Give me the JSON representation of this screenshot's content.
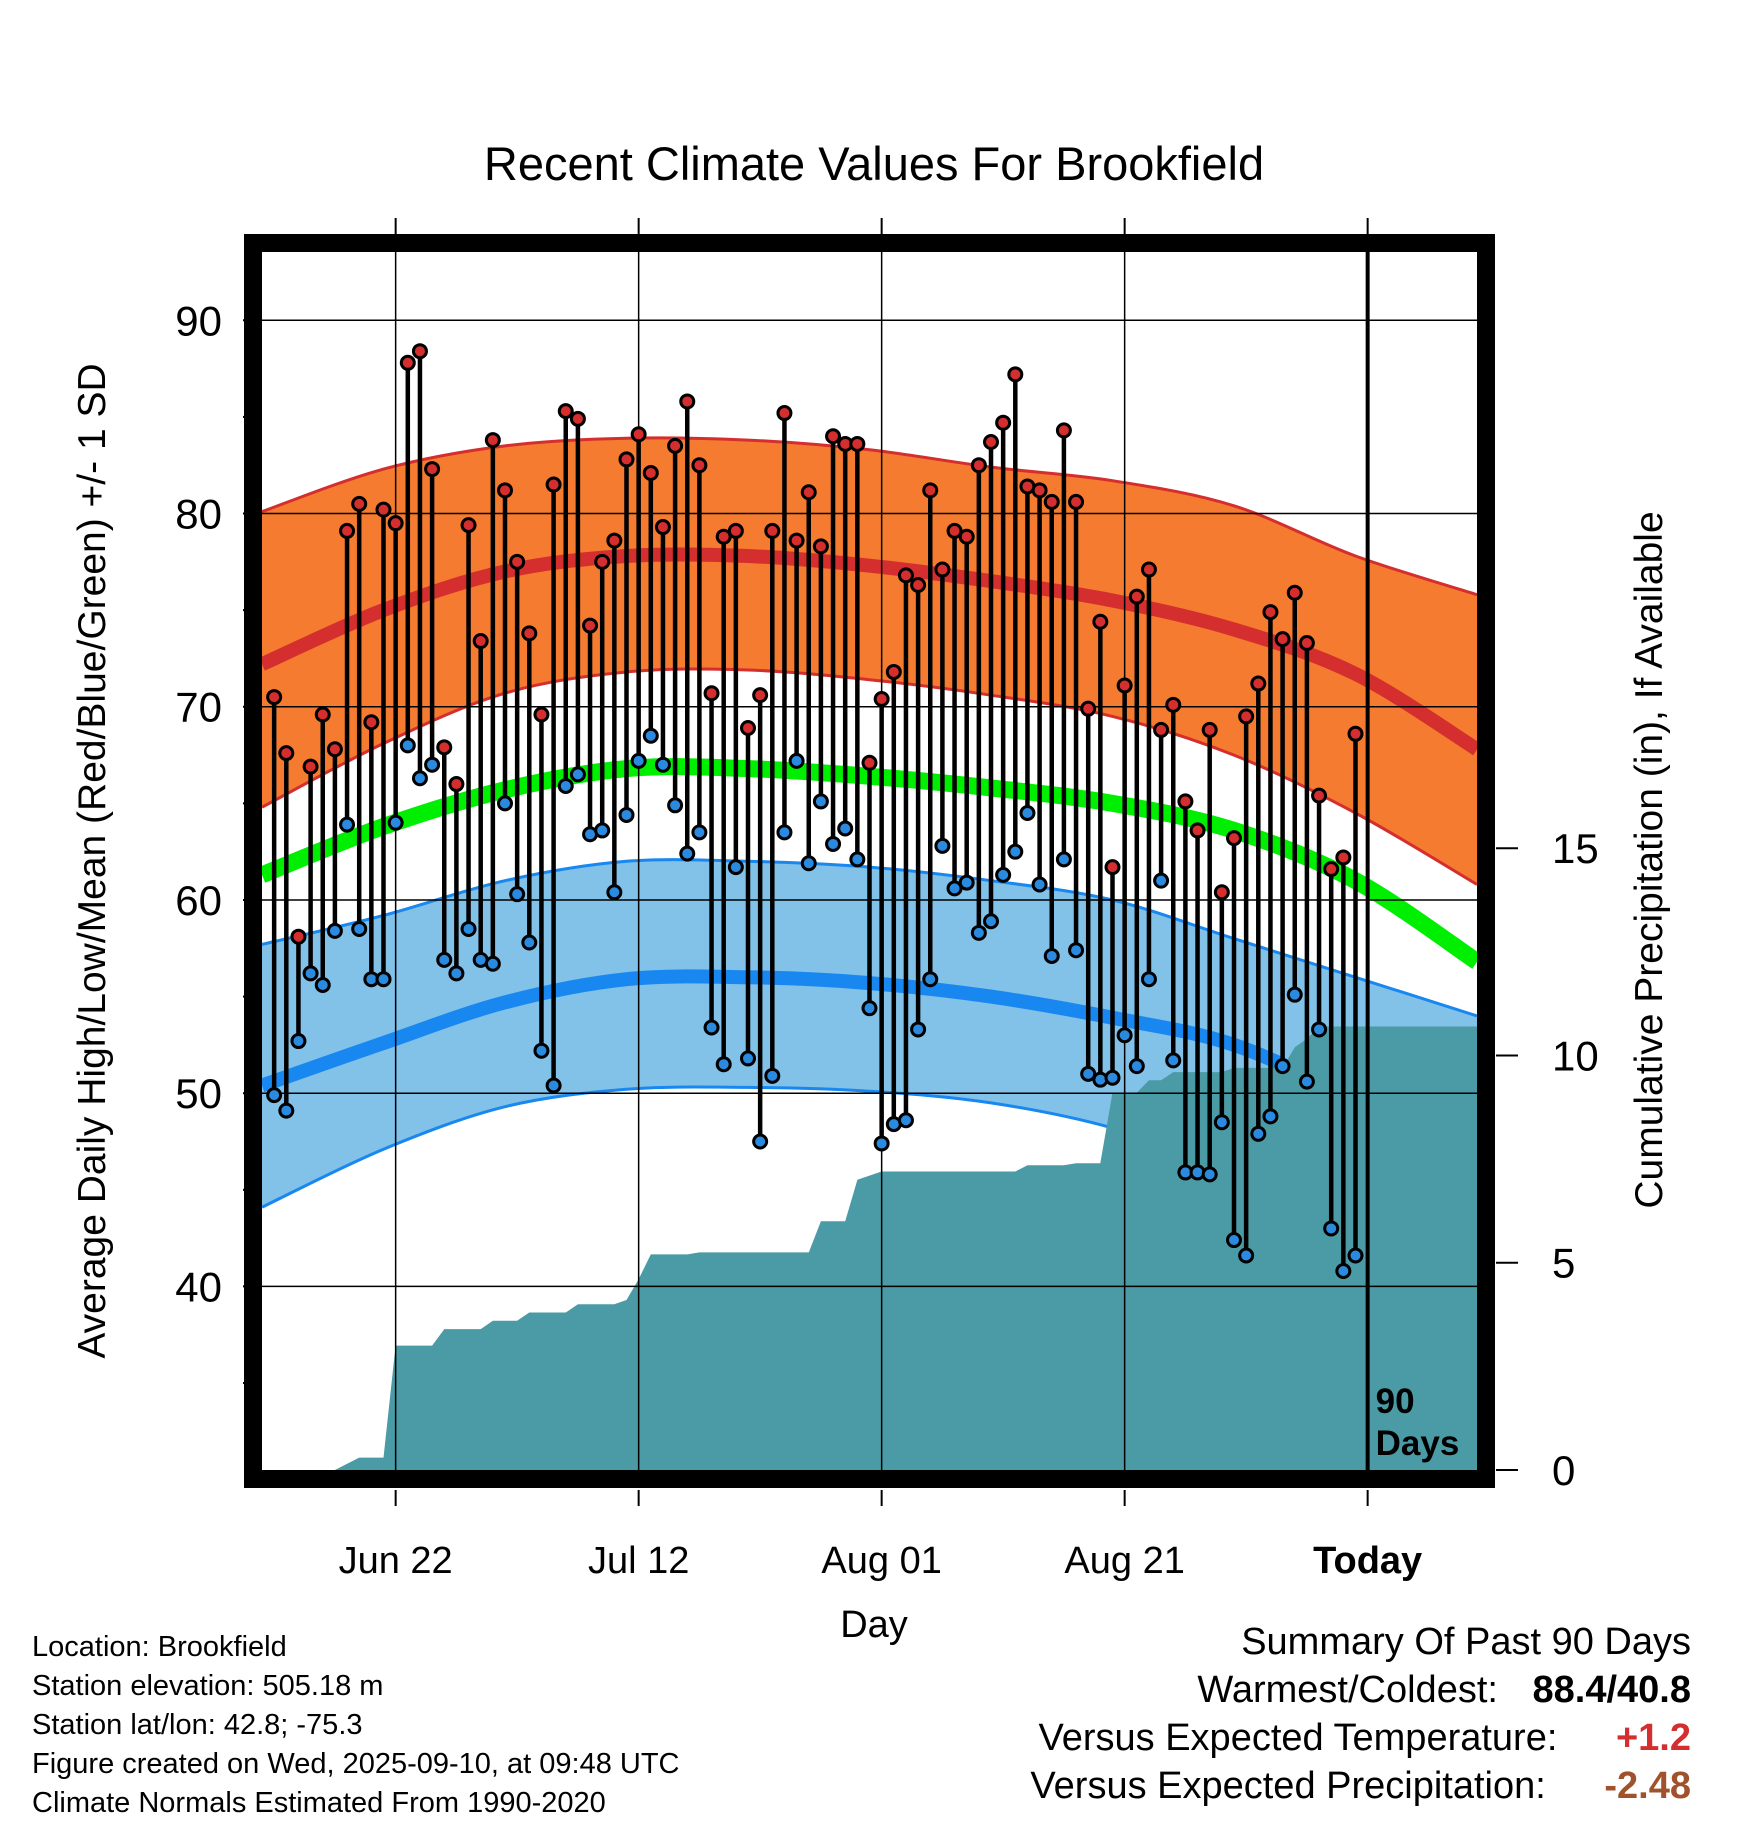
{
  "chart_data": {
    "type": "line",
    "title": "Recent Climate Values For Brookfield",
    "xlabel": "Day",
    "ylabel": "Average Daily High/Low/Mean (Red/Blue/Green) +/- 1 SD",
    "y2label": "Cumulative Precipitation (in), If Available",
    "ylim": [
      30.5,
      94
    ],
    "y2lim": [
      0,
      29.6
    ],
    "xlim": [
      0,
      100
    ],
    "y_ticks": [
      40,
      50,
      60,
      70,
      80,
      90
    ],
    "y2_ticks": [
      0,
      5,
      10,
      15
    ],
    "x_ticks": [
      {
        "day": 11,
        "label": "Jun 22"
      },
      {
        "day": 31,
        "label": "Jul 12"
      },
      {
        "day": 51,
        "label": "Aug 01"
      },
      {
        "day": 71,
        "label": "Aug 21"
      },
      {
        "day": 91,
        "label": "Today"
      }
    ],
    "today_day": 91,
    "today_label_1": "90",
    "today_label_2": "Days",
    "grid": true,
    "colors": {
      "high_band": "#f47b2f",
      "high_mean": "#d42e2e",
      "low_band": "#82c1e8",
      "low_mean": "#1888f0",
      "mean": "#00ee00",
      "precip": "#4a9ba5",
      "high_dot": "#d42e2e",
      "low_dot": "#2a8ae0"
    },
    "normals": {
      "days": [
        0,
        10,
        20,
        30,
        40,
        50,
        60,
        70,
        80,
        90,
        100
      ],
      "high_mean": [
        72.2,
        75.0,
        77.0,
        77.8,
        77.8,
        77.3,
        76.5,
        75.5,
        74.0,
        71.7,
        67.8
      ],
      "high_upper": [
        80.1,
        82.3,
        83.5,
        83.9,
        83.8,
        83.3,
        82.4,
        81.7,
        80.4,
        77.8,
        75.8
      ],
      "high_lower": [
        64.8,
        68.1,
        70.7,
        71.8,
        71.9,
        71.4,
        70.6,
        69.5,
        67.5,
        64.5,
        60.8
      ],
      "mean": [
        61.3,
        63.8,
        65.7,
        66.8,
        66.8,
        66.4,
        65.8,
        65.0,
        63.6,
        61.0,
        56.8
      ],
      "low_mean": [
        50.4,
        52.6,
        54.7,
        55.9,
        56.0,
        55.7,
        55.0,
        53.9,
        52.5,
        49.6,
        46.0
      ],
      "low_upper": [
        57.7,
        59.2,
        61.0,
        62.0,
        62.0,
        61.7,
        61.0,
        60.0,
        58.0,
        56.0,
        54.0
      ],
      "low_lower": [
        44.1,
        47.1,
        49.3,
        50.2,
        50.3,
        50.1,
        49.5,
        48.2,
        46.0,
        43.0,
        40.0
      ]
    },
    "daily": {
      "highs": [
        70.5,
        67.6,
        58.1,
        66.9,
        69.6,
        67.8,
        79.1,
        80.5,
        69.2,
        80.2,
        79.5,
        87.8,
        88.4,
        82.3,
        67.9,
        66.0,
        79.4,
        73.4,
        83.8,
        81.2,
        77.5,
        73.8,
        69.6,
        81.5,
        85.3,
        84.9,
        74.2,
        77.5,
        78.6,
        82.8,
        84.1,
        82.1,
        79.3,
        83.5,
        85.8,
        82.5,
        70.7,
        78.8,
        79.1,
        68.9,
        70.6,
        79.1,
        85.2,
        78.6,
        81.1,
        78.3,
        84.0,
        83.6,
        83.6,
        67.1,
        70.4,
        71.8,
        76.8,
        76.3,
        81.2,
        77.1,
        79.1,
        78.8,
        82.5,
        83.7,
        84.7,
        87.2,
        81.4,
        81.2,
        80.6,
        84.3,
        80.6,
        69.9,
        74.4,
        61.7,
        71.1,
        75.7,
        77.1,
        68.8,
        70.1,
        65.1,
        63.6,
        68.8,
        60.4,
        63.2,
        69.5,
        71.2,
        74.9,
        73.5,
        75.9,
        73.3,
        65.4,
        61.6,
        62.2,
        68.6
      ],
      "lows": [
        49.9,
        49.1,
        52.7,
        56.2,
        55.6,
        58.4,
        63.9,
        58.5,
        55.9,
        55.9,
        64.0,
        68.0,
        66.3,
        67.0,
        56.9,
        56.2,
        58.5,
        56.9,
        56.7,
        65.0,
        60.3,
        57.8,
        52.2,
        50.4,
        65.9,
        66.5,
        63.4,
        63.6,
        60.4,
        64.4,
        67.2,
        68.5,
        67.0,
        64.9,
        62.4,
        63.5,
        53.4,
        51.5,
        61.7,
        51.8,
        47.5,
        50.9,
        63.5,
        67.2,
        61.9,
        65.1,
        62.9,
        63.7,
        62.1,
        54.4,
        47.4,
        48.4,
        48.6,
        53.3,
        55.9,
        62.8,
        60.6,
        60.9,
        58.3,
        58.9,
        61.3,
        62.5,
        64.5,
        60.8,
        57.1,
        62.1,
        57.4,
        51.0,
        50.7,
        50.8,
        53.0,
        51.4,
        55.9,
        61.0,
        51.7,
        45.9,
        45.9,
        45.8,
        48.5,
        42.4,
        41.6,
        47.9,
        48.8,
        51.4,
        55.1,
        50.6,
        53.3,
        43.0,
        40.8,
        41.6
      ]
    },
    "precip_steps": [
      {
        "day": 0,
        "value": 0.0
      },
      {
        "day": 6,
        "value": 0.0
      },
      {
        "day": 8,
        "value": 0.3
      },
      {
        "day": 10,
        "value": 0.3
      },
      {
        "day": 11,
        "value": 3.0
      },
      {
        "day": 14,
        "value": 3.0
      },
      {
        "day": 15,
        "value": 3.4
      },
      {
        "day": 18,
        "value": 3.4
      },
      {
        "day": 19,
        "value": 3.6
      },
      {
        "day": 21,
        "value": 3.6
      },
      {
        "day": 22,
        "value": 3.8
      },
      {
        "day": 25,
        "value": 3.8
      },
      {
        "day": 26,
        "value": 4.0
      },
      {
        "day": 29,
        "value": 4.0
      },
      {
        "day": 30,
        "value": 4.1
      },
      {
        "day": 31,
        "value": 4.6
      },
      {
        "day": 32,
        "value": 5.2
      },
      {
        "day": 35,
        "value": 5.2
      },
      {
        "day": 36,
        "value": 5.25
      },
      {
        "day": 45,
        "value": 5.25
      },
      {
        "day": 46,
        "value": 6.0
      },
      {
        "day": 48,
        "value": 6.0
      },
      {
        "day": 49,
        "value": 7.0
      },
      {
        "day": 51,
        "value": 7.2
      },
      {
        "day": 62,
        "value": 7.2
      },
      {
        "day": 63,
        "value": 7.35
      },
      {
        "day": 66,
        "value": 7.35
      },
      {
        "day": 67,
        "value": 7.4
      },
      {
        "day": 69,
        "value": 7.4
      },
      {
        "day": 70,
        "value": 9.1
      },
      {
        "day": 72,
        "value": 9.1
      },
      {
        "day": 73,
        "value": 9.4
      },
      {
        "day": 74,
        "value": 9.4
      },
      {
        "day": 75,
        "value": 9.6
      },
      {
        "day": 79,
        "value": 9.6
      },
      {
        "day": 80,
        "value": 9.7
      },
      {
        "day": 84,
        "value": 9.7
      },
      {
        "day": 85,
        "value": 10.2
      },
      {
        "day": 86,
        "value": 10.4
      },
      {
        "day": 87,
        "value": 10.7
      },
      {
        "day": 100,
        "value": 10.7
      }
    ]
  },
  "info": {
    "location": "Location: Brookfield",
    "elevation": "Station elevation: 505.18 m",
    "latlon": "Station lat/lon: 42.8; -75.3",
    "created": "Figure created on Wed, 2025-09-10, at 09:48 UTC",
    "normals_period": "Climate Normals Estimated From 1990-2020"
  },
  "summary": {
    "title": "Summary Of Past 90 Days",
    "warmest_label": "Warmest/Coldest:",
    "warmest_value": "88.4/40.8",
    "temp_label": "Versus Expected Temperature:",
    "temp_value": "+1.2",
    "temp_color": "#d42e2e",
    "precip_label": "Versus Expected Precipitation:",
    "precip_value": "-2.48",
    "precip_color": "#a0522d"
  }
}
